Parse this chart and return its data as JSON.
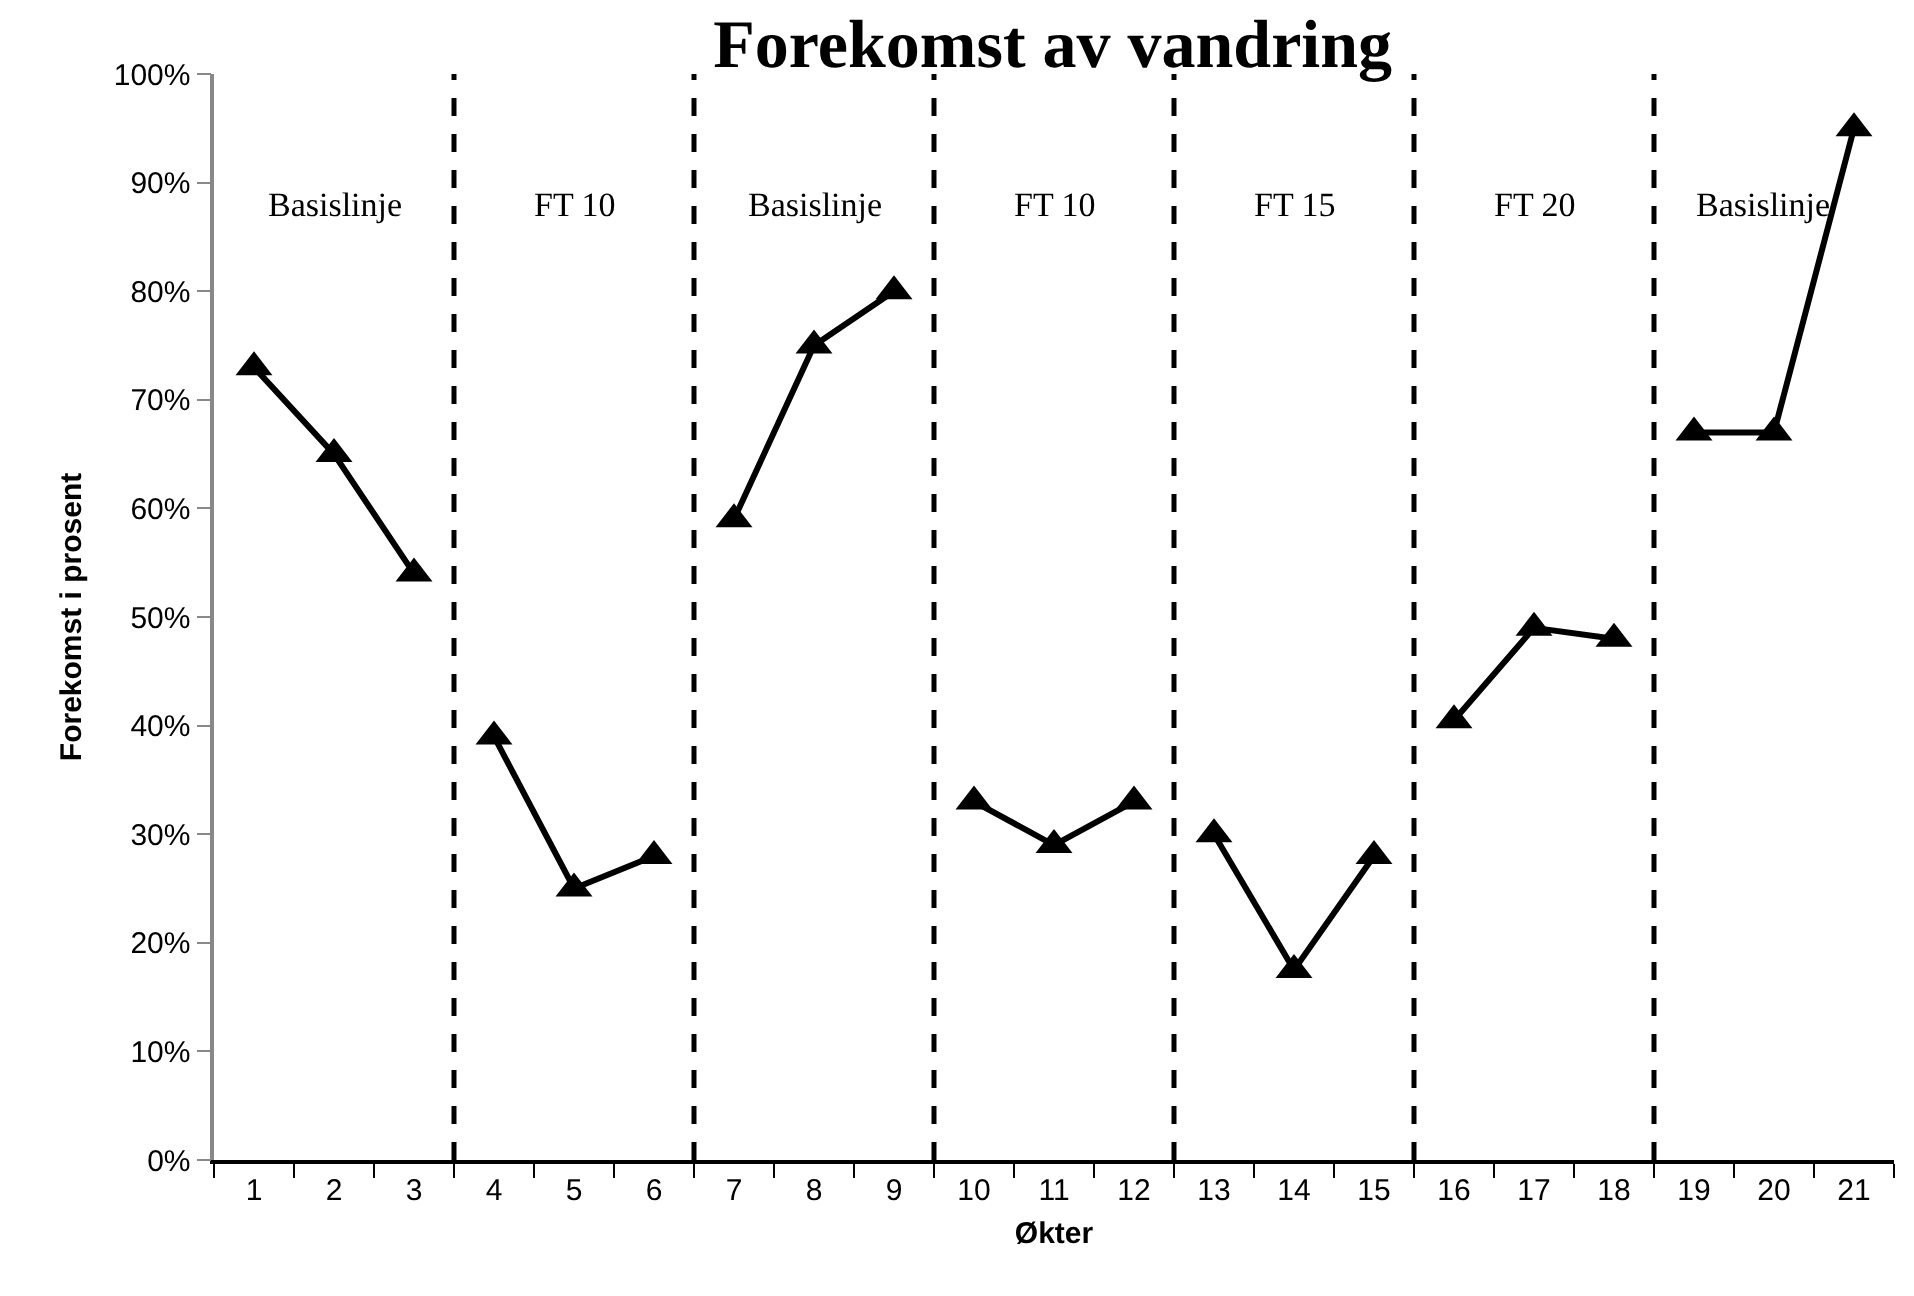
{
  "chart_data": {
    "type": "line",
    "title": "Forekomst av vandring",
    "xlabel": "Økter",
    "ylabel": "Forekomst i prosent",
    "series": [
      {
        "color": "#000000",
        "x": [
          1,
          2,
          3
        ],
        "values": [
          73,
          65,
          54
        ]
      },
      {
        "color": "#000000",
        "x": [
          4,
          5,
          6
        ],
        "values": [
          39,
          25,
          28
        ]
      },
      {
        "color": "#000000",
        "x": [
          7,
          8,
          9
        ],
        "values": [
          59,
          75,
          80
        ]
      },
      {
        "color": "#000000",
        "x": [
          10,
          11,
          12
        ],
        "values": [
          33,
          29,
          33
        ]
      },
      {
        "color": "#000000",
        "x": [
          13,
          14,
          15
        ],
        "values": [
          30,
          17.5,
          28
        ]
      },
      {
        "color": "#000000",
        "x": [
          16,
          17,
          18
        ],
        "values": [
          40.5,
          49,
          48
        ]
      },
      {
        "color": "#000000",
        "x": [
          19,
          20,
          21
        ],
        "values": [
          67,
          67,
          95
        ]
      }
    ],
    "xlim": [
      0.5,
      21.5
    ],
    "xticks": [
      1,
      2,
      3,
      4,
      5,
      6,
      7,
      8,
      9,
      10,
      11,
      12,
      13,
      14,
      15,
      16,
      17,
      18,
      19,
      20,
      21
    ],
    "ylim": [
      0,
      100
    ],
    "yticks": [
      {
        "value": 0,
        "label": "0%"
      },
      {
        "value": 10,
        "label": "10%"
      },
      {
        "value": 20,
        "label": "20%"
      },
      {
        "value": 30,
        "label": "30%"
      },
      {
        "value": 40,
        "label": "40%"
      },
      {
        "value": 50,
        "label": "50%"
      },
      {
        "value": 60,
        "label": "60%"
      },
      {
        "value": 70,
        "label": "70%"
      },
      {
        "value": 80,
        "label": "80%"
      },
      {
        "value": 90,
        "label": "90%"
      },
      {
        "value": 100,
        "label": "100%"
      }
    ],
    "ref_lines": [
      {
        "axis": "x",
        "value": 3.5,
        "line_style": "dashed",
        "color": "#000000"
      },
      {
        "axis": "x",
        "value": 6.5,
        "line_style": "dashed",
        "color": "#000000"
      },
      {
        "axis": "x",
        "value": 9.5,
        "line_style": "dashed",
        "color": "#000000"
      },
      {
        "axis": "x",
        "value": 12.5,
        "line_style": "dashed",
        "color": "#000000"
      },
      {
        "axis": "x",
        "value": 15.5,
        "line_style": "dashed",
        "color": "#000000"
      },
      {
        "axis": "x",
        "value": 18.5,
        "line_style": "dashed",
        "color": "#000000"
      }
    ],
    "annotations": [
      "Basislinje",
      "FT 10",
      "Basislinje",
      "FT 10",
      "FT 15",
      "FT 20",
      "Basislinje"
    ],
    "grid": false,
    "marker": "triangle",
    "line_style": "solid"
  }
}
